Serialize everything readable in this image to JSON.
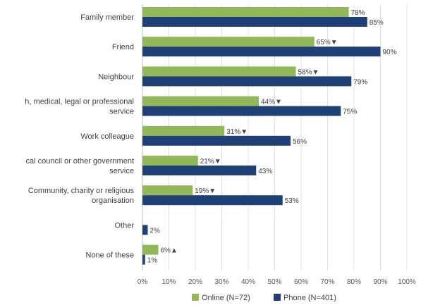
{
  "chart_data": {
    "type": "bar",
    "orientation": "horizontal",
    "categories": [
      [
        "Family member"
      ],
      [
        "Friend"
      ],
      [
        "Neighbour"
      ],
      [
        "h, medical, legal or professional",
        "service"
      ],
      [
        "Work colleague"
      ],
      [
        "cal council or other government",
        "service"
      ],
      [
        "Community, charity or religious",
        "organisation"
      ],
      [
        "Other"
      ],
      [
        "None of these"
      ]
    ],
    "series": [
      {
        "name": "Online (N=72)",
        "color": "#92b85a",
        "values": [
          78,
          65,
          58,
          44,
          31,
          21,
          19,
          null,
          6
        ],
        "labels": [
          "78%",
          "65%▼",
          "58%▼",
          "44%▼",
          "31%▼",
          "21%▼",
          "19%▼",
          "",
          "6%▲"
        ]
      },
      {
        "name": "Phone (N=401)",
        "color": "#1f3f77",
        "values": [
          85,
          90,
          79,
          75,
          56,
          43,
          53,
          2,
          1
        ],
        "labels": [
          "85%",
          "90%",
          "79%",
          "75%",
          "56%",
          "43%",
          "53%",
          "2%",
          "1%"
        ]
      }
    ],
    "xlim": [
      0,
      100
    ],
    "xticks": [
      "0%",
      "10%",
      "20%",
      "30%",
      "40%",
      "50%",
      "60%",
      "70%",
      "80%",
      "90%",
      "100%"
    ],
    "legend_position": "bottom",
    "grid": true
  }
}
